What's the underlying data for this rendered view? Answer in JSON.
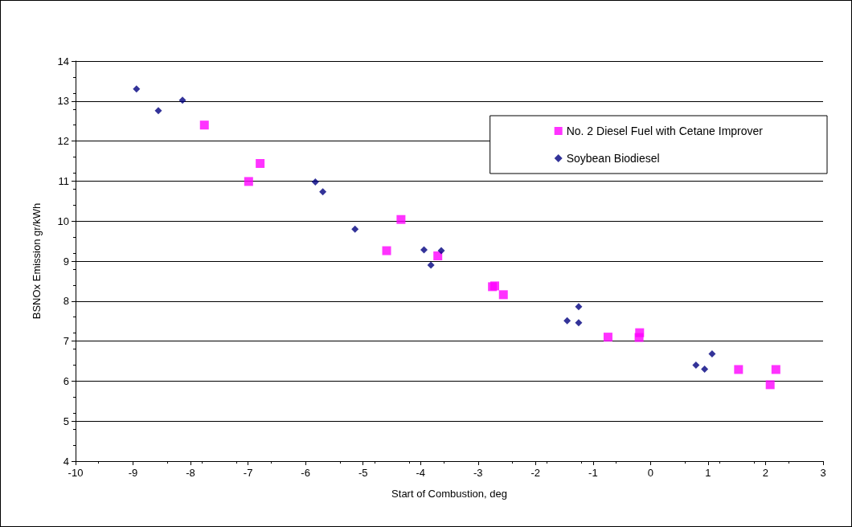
{
  "chart_data": {
    "type": "scatter",
    "xlabel": "Start of Combustion, deg",
    "ylabel": "BSNOx Emission gr/kWh",
    "xlim": [
      -10,
      3
    ],
    "xticks": [
      -10,
      -9,
      -8,
      -7,
      -6,
      -5,
      -4,
      -3,
      -2,
      -1,
      0,
      1,
      2,
      3
    ],
    "ylim": [
      4,
      14
    ],
    "yticks": [
      4,
      5,
      6,
      7,
      8,
      9,
      10,
      11,
      12,
      13,
      14
    ],
    "grid": "y",
    "legend": "top right",
    "series": [
      {
        "name": "No. 2 Diesel Fuel with Cetane Improver",
        "color": "#ff00ff",
        "marker": "square",
        "x": [
          -7.76,
          -6.99,
          -6.79,
          -4.59,
          -4.34,
          -3.7,
          -2.75,
          -2.71,
          -2.56,
          -0.74,
          -0.19,
          -0.2,
          1.53,
          2.18,
          2.08
        ],
        "values": [
          12.4,
          10.99,
          11.44,
          9.26,
          10.04,
          9.13,
          8.36,
          8.38,
          8.16,
          7.1,
          7.21,
          7.09,
          6.29,
          6.29,
          5.91
        ]
      },
      {
        "name": "Soybean Biodiesel",
        "color": "#000080",
        "marker": "diamond",
        "x": [
          -8.94,
          -8.56,
          -8.14,
          -5.83,
          -5.7,
          -5.14,
          -3.94,
          -3.82,
          -3.64,
          -1.45,
          -1.25,
          -1.25,
          0.79,
          0.94,
          1.07
        ],
        "values": [
          13.3,
          12.76,
          13.02,
          10.98,
          10.73,
          9.8,
          9.28,
          8.9,
          9.26,
          7.51,
          7.86,
          7.46,
          6.4,
          6.3,
          6.68
        ]
      }
    ]
  }
}
